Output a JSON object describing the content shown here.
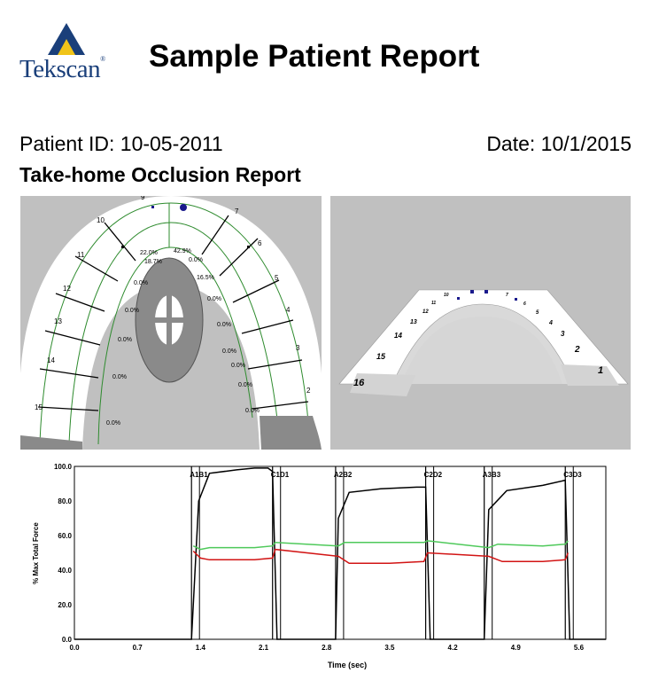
{
  "header": {
    "logo_text": "Tekscan",
    "logo_reg": "®",
    "title": "Sample Patient Report"
  },
  "patient": {
    "id_text": "Patient ID: 10-05-2011",
    "date_text": "Date: 10/1/2015"
  },
  "report": {
    "subtitle": "Take-home Occlusion Report"
  },
  "occlusion_2d": {
    "tooth_numbers": [
      "9",
      "10",
      "11",
      "12",
      "13",
      "14",
      "15",
      "7",
      "6",
      "5",
      "4",
      "3",
      "2"
    ],
    "percent_labels": [
      "22.0%",
      "42.9%",
      "18.7%",
      "0.0%",
      "16.5%",
      "0.0%",
      "0.0%",
      "0.0%",
      "0.0%",
      "0.0%",
      "0.0%",
      "0.0%",
      "0.0%",
      "0.0%",
      "0.0%",
      "0.0%"
    ]
  },
  "occlusion_3d": {
    "tooth_numbers": [
      "10",
      "11",
      "12",
      "13",
      "14",
      "15",
      "16",
      "7",
      "6",
      "5",
      "4",
      "3",
      "2",
      "1"
    ]
  },
  "colors": {
    "panel_bg": "#c0c0c0",
    "arch_fill": "#ffffff",
    "grid_green": "#2e8b2e",
    "force_black": "#000000",
    "series_green": "#4ec95a",
    "series_red": "#d21414",
    "marker_blue": "#1a1a8c",
    "logo_blue": "#1a3f7a",
    "logo_yellow": "#f0c419"
  },
  "chart_data": {
    "type": "line",
    "title": "",
    "xlabel": "Time (sec)",
    "ylabel": "% Max Total Force",
    "xlim": [
      0,
      5.9
    ],
    "ylim": [
      0,
      100
    ],
    "x_ticks": [
      "0.0",
      "0.7",
      "1.4",
      "2.1",
      "2.8",
      "3.5",
      "4.2",
      "4.9",
      "5.6"
    ],
    "y_ticks": [
      "0.0",
      "20.0",
      "40.0",
      "60.0",
      "80.0",
      "100.0"
    ],
    "markers": [
      {
        "label": "A1B1",
        "x": 1.3
      },
      {
        "label": "C1D1",
        "x": 2.2
      },
      {
        "label": "A2B2",
        "x": 2.9
      },
      {
        "label": "C2D2",
        "x": 3.9
      },
      {
        "label": "A3B3",
        "x": 4.55
      },
      {
        "label": "C3D3",
        "x": 5.45
      }
    ],
    "series": [
      {
        "color_key": "force_black",
        "points": [
          [
            0,
            0
          ],
          [
            1.3,
            0
          ],
          [
            1.38,
            80
          ],
          [
            1.5,
            96
          ],
          [
            1.8,
            98
          ],
          [
            2.0,
            99
          ],
          [
            2.15,
            99
          ],
          [
            2.2,
            97
          ],
          [
            2.25,
            0
          ],
          [
            2.9,
            0
          ],
          [
            2.93,
            70
          ],
          [
            3.05,
            85
          ],
          [
            3.4,
            87
          ],
          [
            3.8,
            88
          ],
          [
            3.9,
            88
          ],
          [
            3.95,
            0
          ],
          [
            4.55,
            0
          ],
          [
            4.6,
            75
          ],
          [
            4.8,
            86
          ],
          [
            5.2,
            89
          ],
          [
            5.45,
            92
          ],
          [
            5.5,
            0
          ],
          [
            5.9,
            0
          ]
        ]
      },
      {
        "color_key": "series_green",
        "points": [
          [
            1.32,
            54
          ],
          [
            1.4,
            52
          ],
          [
            1.5,
            53
          ],
          [
            2.0,
            53
          ],
          [
            2.2,
            54
          ],
          [
            2.23,
            56
          ],
          [
            2.93,
            54
          ],
          [
            3.0,
            56
          ],
          [
            3.5,
            56
          ],
          [
            3.88,
            56
          ],
          [
            3.92,
            57
          ],
          [
            4.6,
            53
          ],
          [
            4.7,
            55
          ],
          [
            5.2,
            54
          ],
          [
            5.45,
            55
          ],
          [
            5.48,
            57
          ]
        ]
      },
      {
        "color_key": "series_red",
        "points": [
          [
            1.32,
            51
          ],
          [
            1.4,
            47
          ],
          [
            1.5,
            46
          ],
          [
            2.0,
            46
          ],
          [
            2.2,
            47
          ],
          [
            2.23,
            52
          ],
          [
            2.93,
            48
          ],
          [
            3.05,
            44
          ],
          [
            3.5,
            44
          ],
          [
            3.88,
            45
          ],
          [
            3.92,
            50
          ],
          [
            4.6,
            48
          ],
          [
            4.75,
            45
          ],
          [
            5.2,
            45
          ],
          [
            5.45,
            46
          ],
          [
            5.48,
            50
          ]
        ]
      }
    ]
  }
}
